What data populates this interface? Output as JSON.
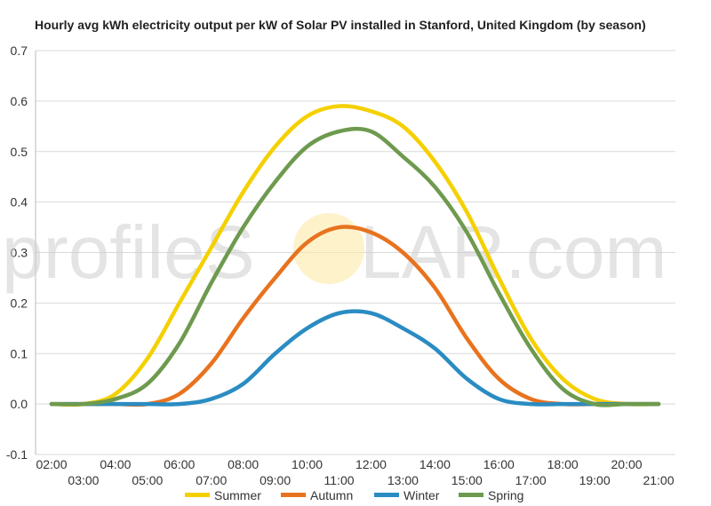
{
  "watermark": {
    "left": "profileS",
    "right": "LAR.com"
  },
  "colors": {
    "grid": "#d9d9d9",
    "axis": "#bbbbbb",
    "sun": "#fde9a8"
  },
  "chart_data": {
    "type": "line",
    "title": "Hourly avg kWh electricity output per kW of Solar PV installed in Stanford, United Kingdom (by season)",
    "xlabel": "",
    "ylabel": "",
    "ylim": [
      -0.1,
      0.7
    ],
    "yticks": [
      "-0.1",
      "0.0",
      "0.1",
      "0.2",
      "0.3",
      "0.4",
      "0.5",
      "0.6",
      "0.7"
    ],
    "x": [
      "02:00",
      "03:00",
      "04:00",
      "05:00",
      "06:00",
      "07:00",
      "08:00",
      "09:00",
      "10:00",
      "11:00",
      "12:00",
      "13:00",
      "14:00",
      "15:00",
      "16:00",
      "17:00",
      "18:00",
      "19:00",
      "20:00",
      "21:00"
    ],
    "xlabels_upper": [
      "02:00",
      "04:00",
      "06:00",
      "08:00",
      "10:00",
      "12:00",
      "14:00",
      "16:00",
      "18:00",
      "20:00"
    ],
    "xlabels_lower": [
      "03:00",
      "05:00",
      "07:00",
      "09:00",
      "11:00",
      "13:00",
      "15:00",
      "17:00",
      "19:00",
      "21:00"
    ],
    "legend_position": "bottom",
    "grid": true,
    "series": [
      {
        "name": "Summer",
        "color": "#f5d000",
        "values": [
          0.0,
          0.0,
          0.02,
          0.09,
          0.2,
          0.31,
          0.42,
          0.51,
          0.57,
          0.59,
          0.58,
          0.55,
          0.48,
          0.38,
          0.25,
          0.13,
          0.05,
          0.01,
          0.0,
          0.0
        ]
      },
      {
        "name": "Autumn",
        "color": "#e8731e",
        "values": [
          0.0,
          0.0,
          0.0,
          0.0,
          0.02,
          0.08,
          0.17,
          0.25,
          0.32,
          0.35,
          0.34,
          0.3,
          0.23,
          0.13,
          0.05,
          0.01,
          0.0,
          0.0,
          0.0,
          0.0
        ]
      },
      {
        "name": "Winter",
        "color": "#2a8cc2",
        "values": [
          0.0,
          0.0,
          0.0,
          0.0,
          0.0,
          0.01,
          0.04,
          0.1,
          0.15,
          0.18,
          0.18,
          0.15,
          0.11,
          0.05,
          0.01,
          0.0,
          0.0,
          0.0,
          0.0,
          0.0
        ]
      },
      {
        "name": "Spring",
        "color": "#6e9a4f",
        "values": [
          0.0,
          0.0,
          0.01,
          0.04,
          0.12,
          0.24,
          0.35,
          0.44,
          0.51,
          0.54,
          0.54,
          0.49,
          0.43,
          0.34,
          0.22,
          0.11,
          0.03,
          0.0,
          0.0,
          0.0
        ]
      }
    ]
  }
}
